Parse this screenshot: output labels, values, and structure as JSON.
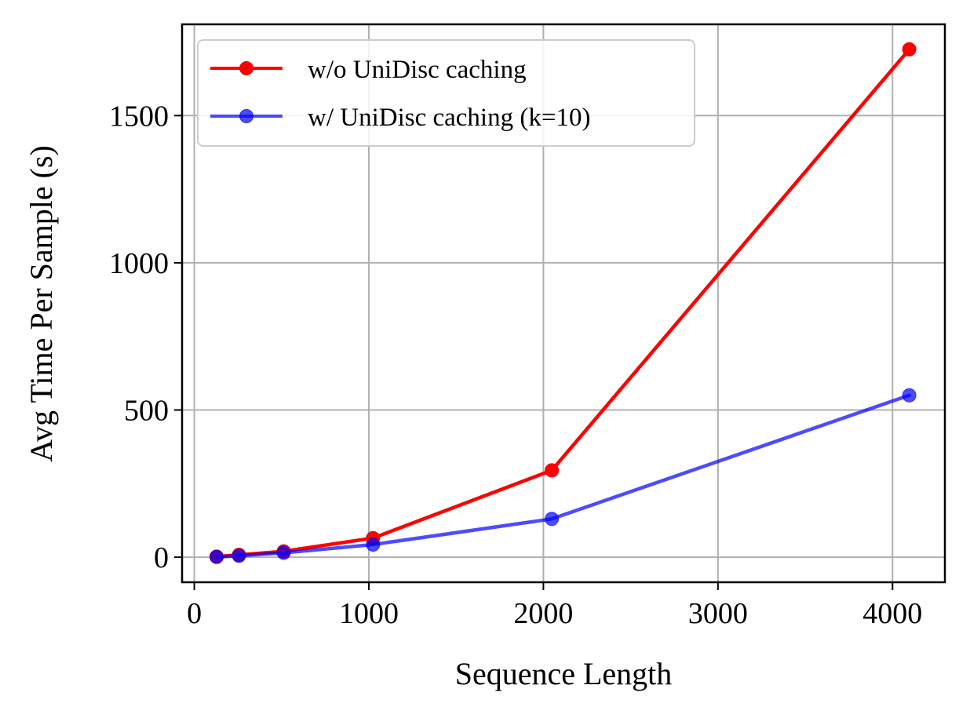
{
  "chart_data": {
    "type": "line",
    "title": "",
    "xlabel": "Sequence Length",
    "ylabel": "Avg Time Per Sample (s)",
    "xlim": [
      -70,
      4300
    ],
    "ylim": [
      -85,
      1810
    ],
    "xticks": [
      0,
      1000,
      2000,
      3000,
      4000
    ],
    "yticks": [
      0,
      500,
      1000,
      1500
    ],
    "xtick_labels": [
      "0",
      "1000",
      "2000",
      "3000",
      "4000"
    ],
    "ytick_labels": [
      "0",
      "500",
      "1000",
      "1500"
    ],
    "grid": true,
    "legend_position": "upper-left",
    "series": [
      {
        "name": "w/o UniDisc caching",
        "color": "#ff0000",
        "alpha": 1.0,
        "x": [
          128,
          256,
          512,
          1024,
          2048,
          4096
        ],
        "y": [
          2,
          8,
          20,
          65,
          295,
          1725
        ]
      },
      {
        "name": "w/ UniDisc caching (k=10)",
        "color": "#0000ff",
        "alpha": 0.7,
        "x": [
          128,
          256,
          512,
          1024,
          2048,
          4096
        ],
        "y": [
          1,
          5,
          15,
          43,
          130,
          550
        ]
      }
    ]
  }
}
